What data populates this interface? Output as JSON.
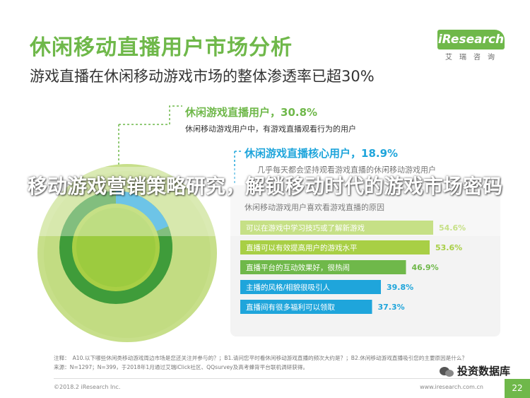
{
  "header": {
    "title": "休闲移动直播用户市场分析",
    "subtitle": "游戏直播在休闲移动游戏市场的整体渗透率已超30%"
  },
  "brand": {
    "logo": "iResearch",
    "sub": "艾瑞咨询"
  },
  "callouts": {
    "c1_title": "休闲游戏直播用户，30.8%",
    "c1_desc": "休闲移动游戏用户中，有游戏直播观看行为的用户",
    "c2_title": "休闲游戏直播核心用户，18.9%",
    "c2_desc": "几乎每天都会坚持观看游戏直播的休闲移动游戏用户"
  },
  "panel": {
    "header": "休闲移动游戏用户喜欢看游戏直播的原因"
  },
  "banner": {
    "text": "移动游戏营销策略研究，解锁移动时代的游戏市场密码"
  },
  "footer": {
    "note_line1": "注释：　A10.以下哪些休闲类移动游戏周边市场是您还关注并参与的？；B1.请问您平时看休闲移动游戏直播的频次大约是？；B2.休闲移动游戏直播吸引您的主要原因是什么？",
    "note_line2": "来源：N=1297；N=399，于2018年1月通过艾瑞iClick社区、QQsurvey及高考蜂背平台联机调研获得。",
    "copyright": "©2018.2 iResearch Inc.",
    "website": "www.iresearch.com.cn",
    "wechat": "投资数据库",
    "page_number": "22"
  },
  "colors": {
    "green": "#6fb84a",
    "lime": "#a8cf45",
    "blue": "#1fa5db",
    "light_green": "#c7df8a",
    "dark_green": "#3f9c3a"
  },
  "chart_data": [
    {
      "type": "pie",
      "labels": [
        "休闲游戏直播用户",
        "休闲游戏直播核心用户"
      ],
      "values": [
        30.8,
        18.9
      ]
    },
    {
      "type": "bar",
      "orientation": "horizontal",
      "title": "休闲移动游戏用户喜欢看游戏直播的原因",
      "categories": [
        "可以在游戏中学习技巧或了解新游戏",
        "直播可以有效提高用户的游戏水平",
        "直播平台的互动效果好，很热闹",
        "主播的风格/相貌很吸引人",
        "直播间有很多福利可以领取"
      ],
      "values": [
        54.6,
        53.6,
        46.9,
        39.8,
        37.3
      ],
      "value_labels": [
        "54.6%",
        "53.6%",
        "46.9%",
        "39.8%",
        "37.3%"
      ],
      "xlim": [
        0,
        60
      ]
    }
  ]
}
